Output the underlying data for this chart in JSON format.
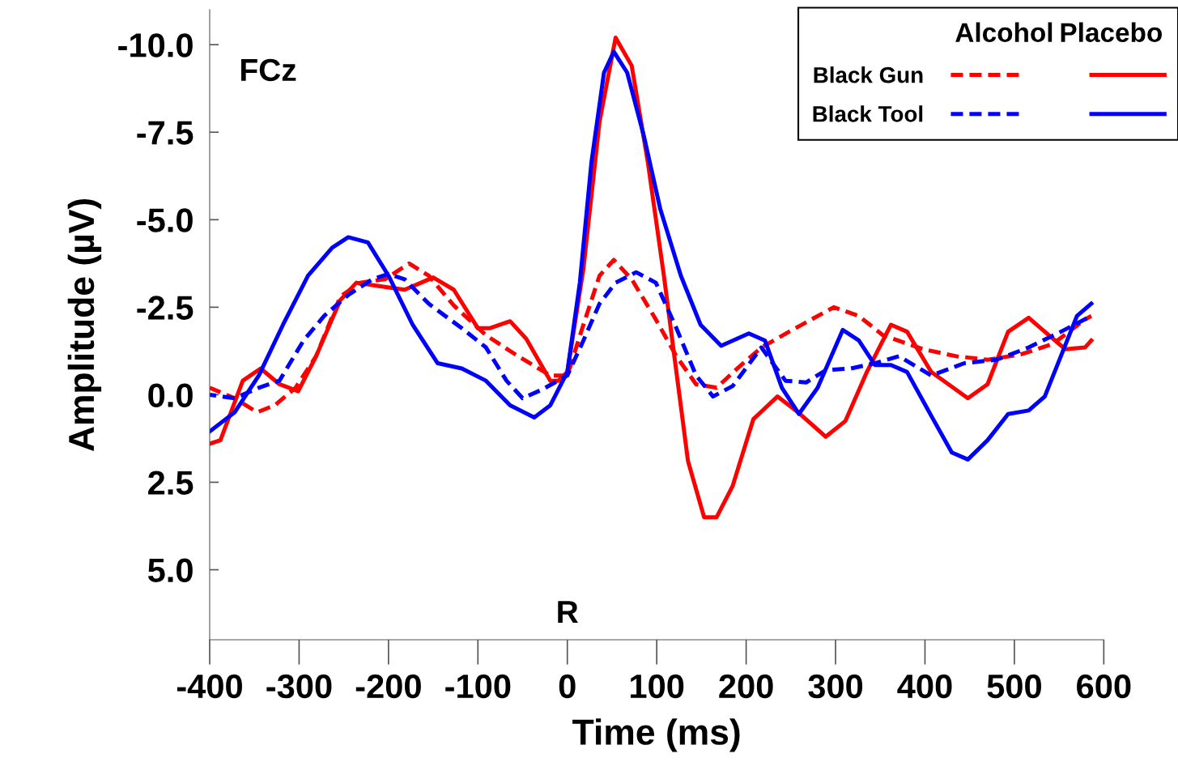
{
  "chart_data": {
    "type": "line",
    "xlabel": "Time (ms)",
    "ylabel": "Amplitude (µV)",
    "xlim": [
      -400,
      600
    ],
    "xticks": [
      -400,
      -300,
      -200,
      -100,
      0,
      100,
      200,
      300,
      400,
      500,
      600
    ],
    "ylim": [
      7,
      -11
    ],
    "yticks": [
      {
        "value": -10,
        "label": "-10.0"
      },
      {
        "value": -7.5,
        "label": "-7.5"
      },
      {
        "value": -5,
        "label": "-5.0"
      },
      {
        "value": -2.5,
        "label": "-2.5"
      },
      {
        "value": 0,
        "label": "0.0"
      },
      {
        "value": 2.5,
        "label": "2.5"
      },
      {
        "value": 5,
        "label": "5.0"
      }
    ],
    "grid": false,
    "legend": "top right",
    "marker": "none",
    "annotations": [
      "FCz",
      "R",
      "Alcohol",
      "Placebo"
    ],
    "series": [
      {
        "name": "Black Gun",
        "color": "#ff0000",
        "line_style": "dashed",
        "x": [
          -400,
          -372,
          -347,
          -327,
          -304,
          -281,
          -254,
          -232,
          -204,
          -177,
          -155,
          -127,
          -91,
          -55,
          -19,
          0,
          18,
          36,
          52,
          72,
          99,
          122,
          144,
          167,
          190,
          217,
          248,
          298,
          326,
          353,
          398,
          435,
          470,
          507,
          543,
          579,
          586
        ],
        "values": [
          -0.2,
          0.1,
          0.5,
          0.3,
          -0.2,
          -1.1,
          -2.8,
          -3.2,
          -3.3,
          -3.75,
          -3.4,
          -2.55,
          -1.7,
          -1.1,
          -0.55,
          -0.55,
          -2.0,
          -3.4,
          -3.85,
          -3.3,
          -2.15,
          -1.1,
          -0.3,
          -0.2,
          -0.75,
          -1.35,
          -1.8,
          -2.5,
          -2.25,
          -1.7,
          -1.3,
          -1.1,
          -1.0,
          -1.15,
          -1.45,
          -2.15,
          -2.25
        ]
      },
      {
        "color": "#ff0000",
        "line_style": "solid",
        "x": [
          -400,
          -388,
          -363,
          -343,
          -322,
          -301,
          -281,
          -254,
          -236,
          -209,
          -182,
          -150,
          -127,
          -100,
          -87,
          -64,
          -46,
          -19,
          -10,
          0,
          18,
          36,
          54,
          72,
          90,
          108,
          122,
          135,
          153,
          167,
          185,
          208,
          235,
          258,
          289,
          311,
          335,
          362,
          380,
          407,
          448,
          470,
          493,
          516,
          534,
          557,
          579,
          586
        ],
        "values": [
          1.4,
          1.3,
          -0.4,
          -0.75,
          -0.3,
          -0.1,
          -1.1,
          -2.7,
          -3.2,
          -3.1,
          -3.0,
          -3.35,
          -3.0,
          -1.9,
          -1.9,
          -2.1,
          -1.6,
          -0.4,
          -0.4,
          -0.65,
          -3.6,
          -7.8,
          -10.2,
          -9.4,
          -6.65,
          -3.4,
          -0.65,
          1.9,
          3.5,
          3.5,
          2.6,
          0.7,
          0.05,
          0.5,
          1.2,
          0.75,
          -0.65,
          -2.0,
          -1.8,
          -0.65,
          0.1,
          -0.3,
          -1.8,
          -2.2,
          -1.8,
          -1.3,
          -1.35,
          -1.55
        ]
      },
      {
        "name": "Black Tool",
        "color": "#0000ff",
        "line_style": "dashed",
        "x": [
          -400,
          -372,
          -345,
          -322,
          -295,
          -272,
          -245,
          -218,
          -200,
          -182,
          -155,
          -118,
          -91,
          -68,
          -50,
          -28,
          0,
          18,
          36,
          54,
          77,
          99,
          122,
          144,
          163,
          185,
          217,
          244,
          267,
          289,
          317,
          344,
          371,
          407,
          444,
          480,
          516,
          552,
          586
        ],
        "values": [
          0.0,
          0.1,
          -0.2,
          -0.4,
          -1.55,
          -2.25,
          -2.85,
          -3.3,
          -3.45,
          -3.3,
          -2.6,
          -1.9,
          -1.35,
          -0.4,
          0.1,
          -0.15,
          -0.55,
          -1.55,
          -2.6,
          -3.2,
          -3.5,
          -3.2,
          -1.9,
          -0.55,
          0.05,
          -0.25,
          -1.35,
          -0.4,
          -0.35,
          -0.7,
          -0.75,
          -0.9,
          -1.1,
          -0.55,
          -0.9,
          -1.0,
          -1.35,
          -1.8,
          -2.25
        ]
      },
      {
        "color": "#0000ff",
        "line_style": "solid",
        "x": [
          -400,
          -372,
          -345,
          -318,
          -290,
          -263,
          -245,
          -223,
          -200,
          -173,
          -145,
          -118,
          -91,
          -64,
          -37,
          -19,
          0,
          14,
          27,
          41,
          52,
          67,
          86,
          104,
          127,
          149,
          172,
          203,
          221,
          240,
          259,
          280,
          308,
          326,
          344,
          362,
          380,
          407,
          430,
          448,
          470,
          493,
          516,
          534,
          552,
          570,
          586
        ],
        "values": [
          1.05,
          0.5,
          -0.55,
          -2.0,
          -3.4,
          -4.2,
          -4.5,
          -4.35,
          -3.4,
          -2.0,
          -0.9,
          -0.75,
          -0.4,
          0.3,
          0.65,
          0.3,
          -0.65,
          -3.2,
          -6.65,
          -9.2,
          -9.8,
          -9.2,
          -7.35,
          -5.3,
          -3.4,
          -2.0,
          -1.4,
          -1.75,
          -1.55,
          -0.2,
          0.55,
          -0.2,
          -1.85,
          -1.55,
          -0.85,
          -0.85,
          -0.65,
          0.6,
          1.65,
          1.85,
          1.3,
          0.55,
          0.45,
          0.05,
          -1.1,
          -2.25,
          -2.6
        ]
      }
    ]
  }
}
